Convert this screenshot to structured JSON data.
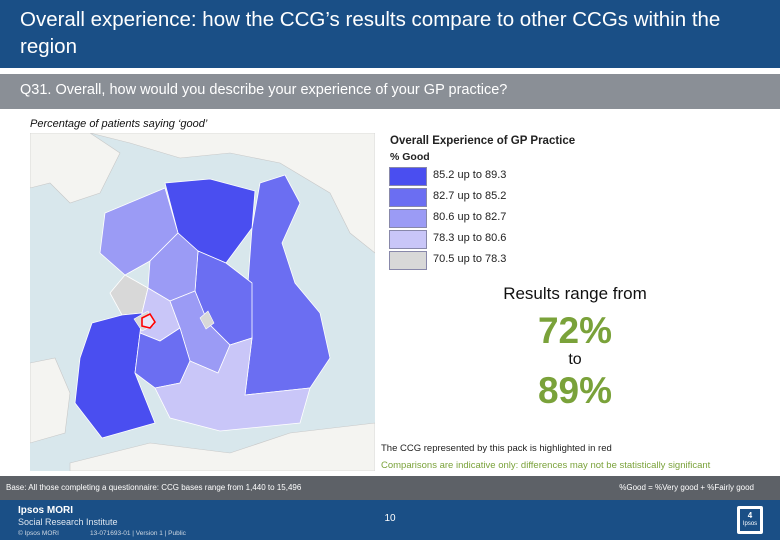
{
  "header": {
    "title": "Overall experience: how the CCG’s results compare to other CCGs within the region"
  },
  "question": {
    "text": "Q31. Overall, how would you describe your experience of your GP practice?"
  },
  "subtitle": "Percentage of patients saying ‘good’",
  "legend": {
    "title": "Overall Experience of GP Practice",
    "subtitle": "% Good",
    "items": [
      {
        "label": "85.2 up to 89.3",
        "color": "#4a4ef0"
      },
      {
        "label": "82.7 up to 85.2",
        "color": "#6b6ef2"
      },
      {
        "label": "80.6 up to 82.7",
        "color": "#9b9bf5"
      },
      {
        "label": "78.3 up to 80.6",
        "color": "#c9c6f8"
      },
      {
        "label": "70.5 up to 78.3",
        "color": "#d8d8d8"
      }
    ]
  },
  "range": {
    "intro": "Results range from",
    "low": "72%",
    "to": "to",
    "high": "89%"
  },
  "notes": {
    "highlight": "The CCG represented by this pack is highlighted in red",
    "indicative": "Comparisons are indicative only: differences may not be statistically significant"
  },
  "base": {
    "text": "Base: All those completing a questionnaire: CCG bases range from 1,440 to 15,496",
    "definition": "%Good = %Very good + %Fairly good"
  },
  "footer": {
    "logo_top": "Ipsos MORI",
    "logo_bottom": "Social Research Institute",
    "copyright": "© Ipsos MORI",
    "job_ref": "13-071693-01 | Version 1 | Public",
    "page_number": "10",
    "icon_number": "4",
    "icon_word": "Ipsos"
  }
}
